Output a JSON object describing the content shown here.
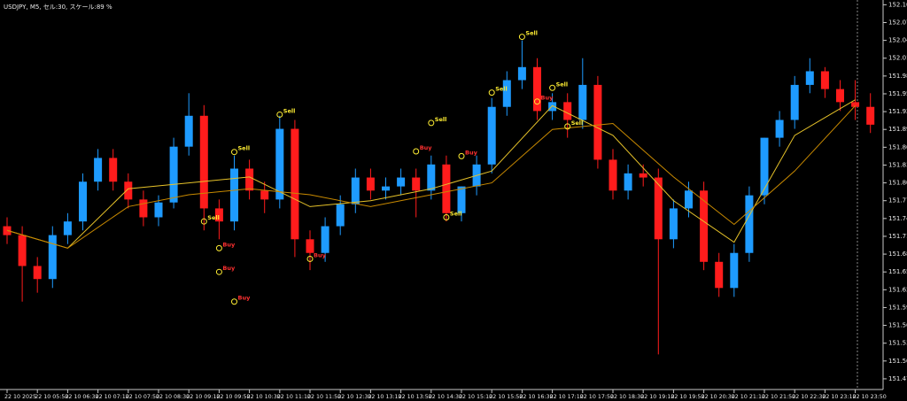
{
  "chart_data": {
    "type": "candlestick",
    "title": "USDJPY, M5, セル:30, スケール:89 %",
    "up_color": "#1e9bff",
    "down_color": "#ff1c1c",
    "open": [
      151.727,
      151.712,
      151.66,
      151.638,
      151.712,
      151.735,
      151.802,
      151.842,
      151.802,
      151.772,
      151.742,
      151.767,
      151.861,
      151.913,
      151.757,
      151.735,
      151.824,
      151.787,
      151.772,
      151.891,
      151.705,
      151.682,
      151.727,
      151.764,
      151.809,
      151.787,
      151.794,
      151.809,
      151.787,
      151.831,
      151.749,
      151.794,
      151.831,
      151.928,
      151.973,
      151.995,
      151.921,
      151.936,
      151.906,
      151.965,
      151.839,
      151.787,
      151.816,
      151.809,
      151.705,
      151.757,
      151.787,
      151.667,
      151.623,
      151.682,
      151.779,
      151.876,
      151.906,
      151.965,
      151.988,
      151.958,
      151.936,
      151.928
    ],
    "high": [
      151.742,
      151.727,
      151.675,
      151.727,
      151.749,
      151.816,
      151.857,
      151.857,
      151.816,
      151.787,
      151.779,
      151.876,
      151.951,
      151.931,
      151.772,
      151.846,
      151.839,
      151.802,
      151.913,
      151.906,
      151.72,
      151.742,
      151.779,
      151.824,
      151.824,
      151.809,
      151.824,
      151.824,
      151.846,
      151.846,
      151.794,
      151.846,
      151.943,
      151.988,
      152.04,
      152.01,
      151.951,
      151.951,
      152.01,
      151.98,
      151.857,
      151.831,
      151.831,
      151.824,
      151.772,
      151.802,
      151.802,
      151.682,
      151.697,
      151.794,
      151.876,
      151.921,
      151.98,
      152.01,
      151.995,
      151.973,
      151.973,
      151.951
    ],
    "low": [
      151.697,
      151.6,
      151.615,
      151.623,
      151.697,
      151.72,
      151.787,
      151.787,
      151.757,
      151.727,
      151.727,
      151.757,
      151.846,
      151.72,
      151.705,
      151.72,
      151.772,
      151.749,
      151.757,
      151.675,
      151.653,
      151.667,
      151.712,
      151.749,
      151.772,
      151.772,
      151.779,
      151.742,
      151.772,
      151.735,
      151.735,
      151.779,
      151.816,
      151.913,
      151.958,
      151.906,
      151.906,
      151.876,
      151.891,
      151.824,
      151.772,
      151.772,
      151.794,
      151.511,
      151.69,
      151.742,
      151.653,
      151.608,
      151.608,
      151.667,
      151.764,
      151.861,
      151.891,
      151.951,
      151.943,
      151.921,
      151.906,
      151.884
    ],
    "close": [
      151.712,
      151.66,
      151.638,
      151.712,
      151.735,
      151.802,
      151.842,
      151.802,
      151.772,
      151.742,
      151.767,
      151.861,
      151.913,
      151.757,
      151.735,
      151.824,
      151.787,
      151.772,
      151.891,
      151.705,
      151.682,
      151.727,
      151.764,
      151.809,
      151.787,
      151.794,
      151.809,
      151.787,
      151.831,
      151.749,
      151.794,
      151.831,
      151.928,
      151.973,
      151.995,
      151.921,
      151.936,
      151.906,
      151.965,
      151.839,
      151.787,
      151.816,
      151.809,
      151.705,
      151.757,
      151.787,
      151.667,
      151.623,
      151.682,
      151.779,
      151.876,
      151.906,
      151.965,
      151.988,
      151.958,
      151.936,
      151.928,
      151.898
    ],
    "lines": [
      {
        "color": "#e6c229",
        "x": [
          0,
          4,
          8,
          12,
          16,
          20,
          24,
          28,
          32,
          36,
          40,
          44,
          48,
          52,
          56
        ],
        "values": [
          151.72,
          151.69,
          151.79,
          151.8,
          151.81,
          151.76,
          151.77,
          151.79,
          151.82,
          151.93,
          151.88,
          151.77,
          151.7,
          151.88,
          151.94
        ]
      },
      {
        "color": "#c98a00",
        "x": [
          0,
          4,
          8,
          12,
          16,
          20,
          24,
          28,
          32,
          36,
          40,
          44,
          48,
          52,
          56
        ],
        "values": [
          151.72,
          151.69,
          151.76,
          151.78,
          151.79,
          151.78,
          151.76,
          151.78,
          151.8,
          151.89,
          151.9,
          151.81,
          151.73,
          151.82,
          151.93
        ]
      }
    ],
    "signals": [
      {
        "label": "Sell",
        "candle": 13,
        "price": 151.735,
        "color": "#ffee33"
      },
      {
        "label": "Buy",
        "candle": 14,
        "price": 151.69,
        "color": "#ff3030"
      },
      {
        "label": "Buy",
        "candle": 14,
        "price": 151.65,
        "color": "#ff3030"
      },
      {
        "label": "Buy",
        "candle": 15,
        "price": 151.6,
        "color": "#ff3030"
      },
      {
        "label": "Sell",
        "candle": 15,
        "price": 151.852,
        "color": "#ffee33"
      },
      {
        "label": "Sell",
        "candle": 18,
        "price": 151.915,
        "color": "#ffee33"
      },
      {
        "label": "Buy",
        "candle": 20,
        "price": 151.672,
        "color": "#ff3030"
      },
      {
        "label": "Buy",
        "candle": 27,
        "price": 151.853,
        "color": "#ff3030"
      },
      {
        "label": "Sell",
        "candle": 28,
        "price": 151.901,
        "color": "#ffee33"
      },
      {
        "label": "Sell",
        "candle": 29,
        "price": 151.742,
        "color": "#ffee33"
      },
      {
        "label": "Buy",
        "candle": 30,
        "price": 151.845,
        "color": "#ff3030"
      },
      {
        "label": "Sell",
        "candle": 32,
        "price": 151.952,
        "color": "#ffee33"
      },
      {
        "label": "Sell",
        "candle": 34,
        "price": 152.046,
        "color": "#ffee33"
      },
      {
        "label": "Buy",
        "candle": 35,
        "price": 151.937,
        "color": "#ff3030"
      },
      {
        "label": "Sell",
        "candle": 36,
        "price": 151.96,
        "color": "#ffee33"
      },
      {
        "label": "Sell",
        "candle": 37,
        "price": 151.895,
        "color": "#ffee33"
      }
    ],
    "ylim": [
      151.452,
      152.108
    ],
    "yticks": [
      {
        "value": 152.1,
        "label": "152.100"
      },
      {
        "value": 152.07,
        "label": "152.070"
      },
      {
        "value": 152.04,
        "label": "152.040"
      },
      {
        "value": 152.01,
        "label": "152.010"
      },
      {
        "value": 151.98,
        "label": "151.980"
      },
      {
        "value": 151.95,
        "label": "151.950"
      },
      {
        "value": 151.92,
        "label": "151.920"
      },
      {
        "value": 151.89,
        "label": "151.890"
      },
      {
        "value": 151.86,
        "label": "151.860"
      },
      {
        "value": 151.83,
        "label": "151.830"
      },
      {
        "value": 151.8,
        "label": "151.800"
      },
      {
        "value": 151.77,
        "label": "151.770"
      },
      {
        "value": 151.74,
        "label": "151.740"
      },
      {
        "value": 151.71,
        "label": "151.710"
      },
      {
        "value": 151.68,
        "label": "151.680"
      },
      {
        "value": 151.65,
        "label": "151.650"
      },
      {
        "value": 151.62,
        "label": "151.620"
      },
      {
        "value": 151.59,
        "label": "151.590"
      },
      {
        "value": 151.56,
        "label": "151.560"
      },
      {
        "value": 151.53,
        "label": "151.530"
      },
      {
        "value": 151.5,
        "label": "151.500"
      },
      {
        "value": 151.47,
        "label": "151.470"
      }
    ],
    "categories": [
      "22 10 2025",
      "22 10 05:50",
      "22 10 06:30",
      "22 10 07:10",
      "22 10 07:50",
      "22 10 08:30",
      "22 10 09:10",
      "22 10 09:50",
      "22 10 10:30",
      "22 10 11:10",
      "22 10 11:50",
      "22 10 12:30",
      "22 10 13:10",
      "22 10 13:50",
      "22 10 14:30",
      "22 10 15:10",
      "22 10 15:50",
      "22 10 16:30",
      "22 10 17:10",
      "22 10 17:50",
      "22 10 18:30",
      "22 10 19:10",
      "22 10 19:50",
      "22 10 20:30",
      "22 10 21:10",
      "22 10 21:50",
      "22 10 22:30",
      "22 10 23:10",
      "22 10 23:50"
    ]
  }
}
